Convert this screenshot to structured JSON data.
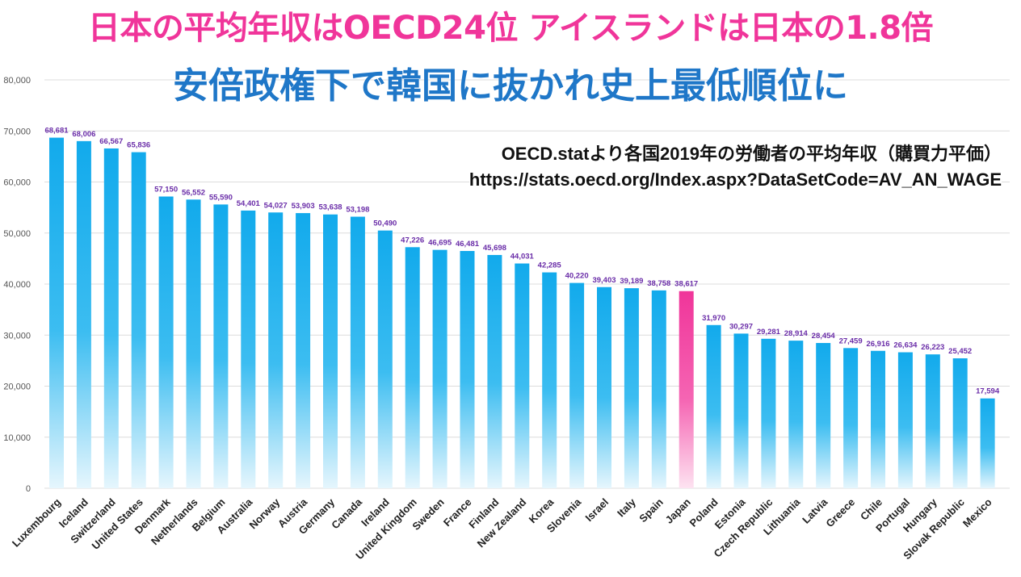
{
  "header": {
    "title": "日本の平均年収はOECD24位 アイスランドは日本の1.8倍",
    "subtitle": "安倍政権下で韓国に抜かれ史上最低順位に",
    "source_note": "OECD.statより各国2019年の労働者の平均年収（購買力平価）",
    "source_url": "https://stats.oecd.org/Index.aspx?DataSetCode=AV_AN_WAGE"
  },
  "colors": {
    "bar": "#1ab0ee",
    "highlight_bar": "#f0359a",
    "title": "#f0359a",
    "subtitle": "#1f77c8",
    "value_label": "#6a2da8"
  },
  "chart_data": {
    "type": "bar",
    "ylim": [
      0,
      80000
    ],
    "yticks": [
      "0",
      "10,000",
      "20,000",
      "30,000",
      "40,000",
      "50,000",
      "60,000",
      "70,000",
      "80,000"
    ],
    "grid": true,
    "highlight": "Japan",
    "categories": [
      "Luxembourg",
      "Iceland",
      "Switzerland",
      "United States",
      "Denmark",
      "Netherlands",
      "Belgium",
      "Australia",
      "Norway",
      "Austria",
      "Germany",
      "Canada",
      "Ireland",
      "United Kingdom",
      "Sweden",
      "France",
      "Finland",
      "New Zealand",
      "Korea",
      "Slovenia",
      "Israel",
      "Italy",
      "Spain",
      "Japan",
      "Poland",
      "Estonia",
      "Czech Republic",
      "Lithuania",
      "Latvia",
      "Greece",
      "Chile",
      "Portugal",
      "Hungary",
      "Slovak Republic",
      "Mexico"
    ],
    "values": [
      68681,
      68006,
      66567,
      65836,
      57150,
      56552,
      55590,
      54401,
      54027,
      53903,
      53638,
      53198,
      50490,
      47226,
      46695,
      46481,
      45698,
      44031,
      42285,
      40220,
      39403,
      39189,
      38758,
      38617,
      31970,
      30297,
      29281,
      28914,
      28454,
      27459,
      26916,
      26634,
      26223,
      25452,
      17594
    ],
    "value_labels": [
      "68,681",
      "68,006",
      "66,567",
      "65,836",
      "57,150",
      "56,552",
      "55,590",
      "54,401",
      "54,027",
      "53,903",
      "53,638",
      "53,198",
      "50,490",
      "47,226",
      "46,695",
      "46,481",
      "45,698",
      "44,031",
      "42,285",
      "40,220",
      "39,403",
      "39,189",
      "38,758",
      "38,617",
      "31,970",
      "30,297",
      "29,281",
      "28,914",
      "28,454",
      "27,459",
      "26,916",
      "26,634",
      "26,223",
      "25,452",
      "17,594"
    ]
  }
}
